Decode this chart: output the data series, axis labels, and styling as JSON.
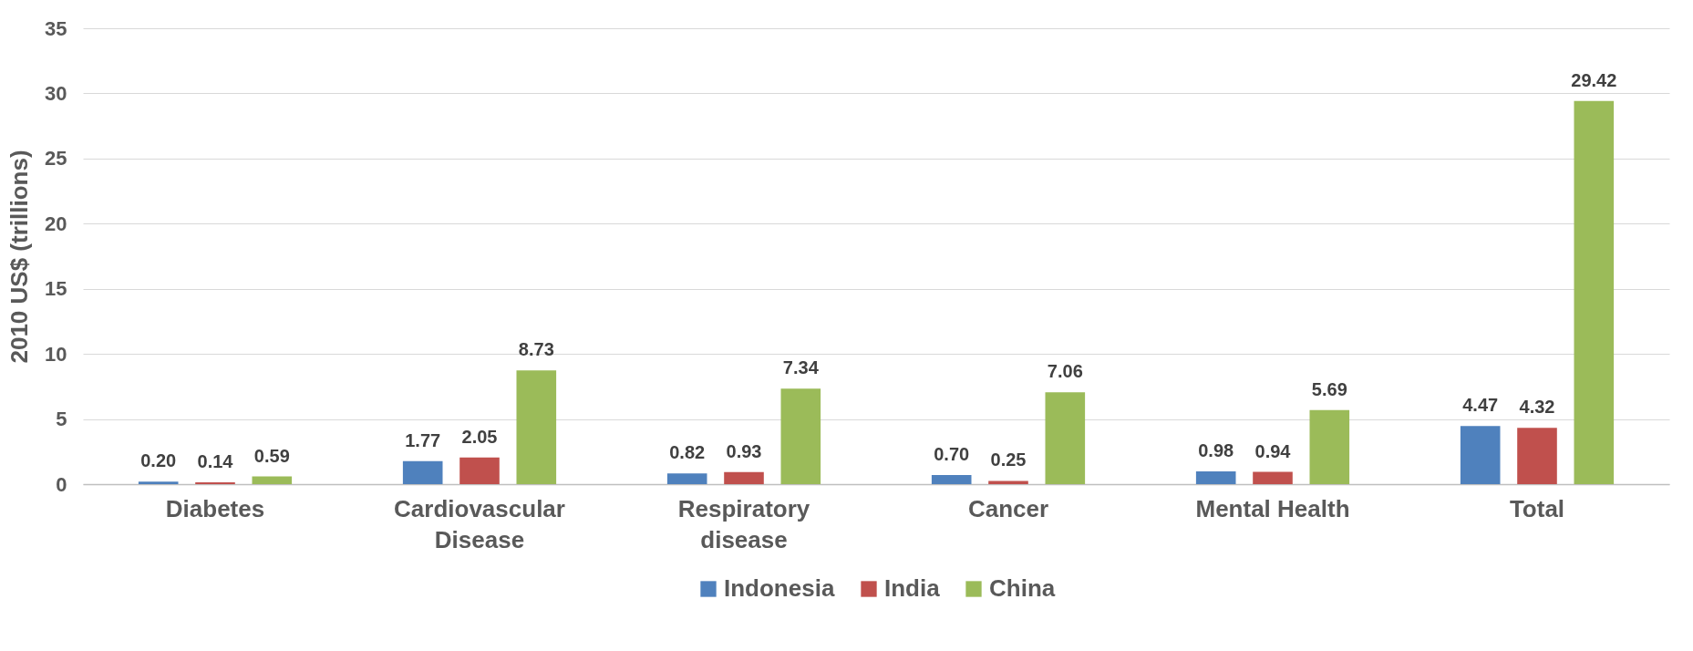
{
  "chart_data": {
    "type": "bar",
    "ylabel": "2010 US$ (trillions)",
    "categories": [
      "Diabetes",
      "Cardiovascular Disease",
      "Respiratory disease",
      "Cancer",
      "Mental Health",
      "Total"
    ],
    "series": [
      {
        "name": "Indonesia",
        "color": "#4f81bd",
        "values": [
          0.2,
          1.77,
          0.82,
          0.7,
          0.98,
          4.47
        ],
        "value_labels": [
          "0.20",
          "1.77",
          "0.82",
          "0.70",
          "0.98",
          "4.47"
        ]
      },
      {
        "name": "India",
        "color": "#c0504d",
        "values": [
          0.14,
          2.05,
          0.93,
          0.25,
          0.94,
          4.32
        ],
        "value_labels": [
          "0.14",
          "2.05",
          "0.93",
          "0.25",
          "0.94",
          "4.32"
        ]
      },
      {
        "name": "China",
        "color": "#9bbb59",
        "values": [
          0.59,
          8.73,
          7.34,
          7.06,
          5.69,
          29.42
        ],
        "value_labels": [
          "0.59",
          "8.73",
          "7.34",
          "7.06",
          "5.69",
          "29.42"
        ]
      }
    ],
    "ylim": [
      0,
      35
    ],
    "yticks": [
      0,
      5,
      10,
      15,
      20,
      25,
      30,
      35
    ],
    "grid": "y",
    "legend": "bottom"
  }
}
